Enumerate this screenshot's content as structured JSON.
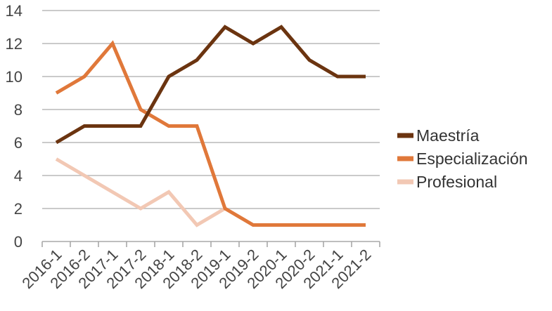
{
  "chart_data": {
    "type": "line",
    "categories": [
      "2016-1",
      "2016-2",
      "2017-1",
      "2017-2",
      "2018-1",
      "2018-2",
      "2019-1",
      "2019-2",
      "2020-1",
      "2020-2",
      "2021-1",
      "2021-2"
    ],
    "ylim": [
      0,
      14
    ],
    "yticks": [
      0,
      2,
      4,
      6,
      8,
      10,
      12,
      14
    ],
    "grid": true,
    "legend_position": "right",
    "series": [
      {
        "name": "Maestría",
        "color": "#6b3410",
        "values": [
          6,
          7,
          7,
          7,
          10,
          11,
          13,
          12,
          13,
          11,
          10,
          10
        ]
      },
      {
        "name": "Especialización",
        "color": "#e0783a",
        "values": [
          9,
          10,
          12,
          8,
          7,
          7,
          2,
          1,
          1,
          1,
          1,
          1
        ]
      },
      {
        "name": "Profesional",
        "color": "#f2c8b4",
        "values": [
          5,
          4,
          3,
          2,
          3,
          1,
          2,
          1,
          1,
          1,
          1,
          1
        ]
      }
    ]
  }
}
